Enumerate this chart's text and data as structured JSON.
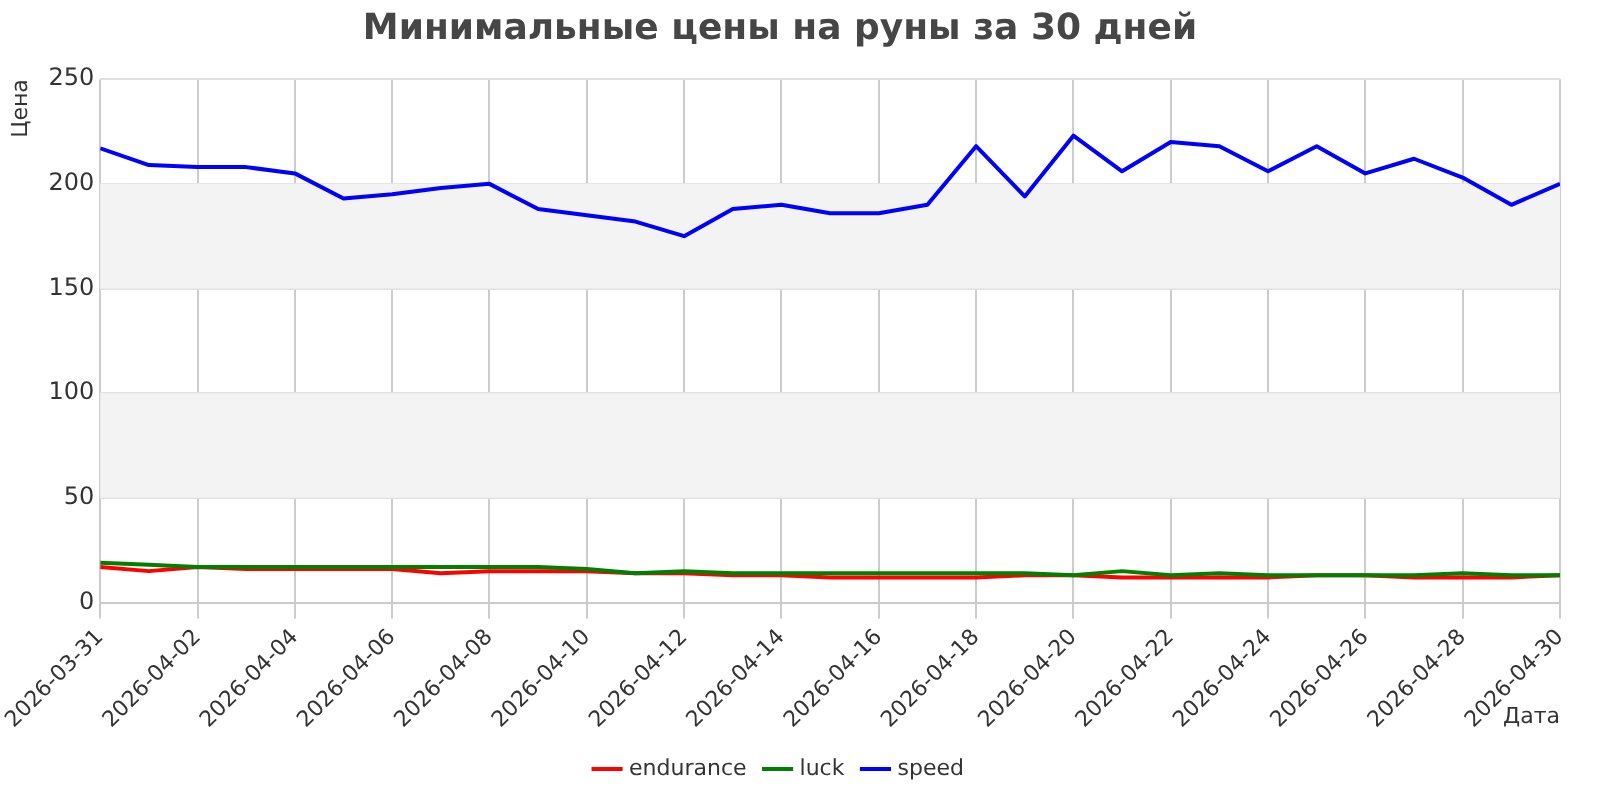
{
  "chart_data": {
    "type": "line",
    "title": "Минимальные цены на руны за 30 дней",
    "xlabel": "Дата",
    "ylabel": "Цена",
    "x": [
      "2026-03-31",
      "2026-04-01",
      "2026-04-02",
      "2026-04-03",
      "2026-04-04",
      "2026-04-05",
      "2026-04-06",
      "2026-04-07",
      "2026-04-08",
      "2026-04-09",
      "2026-04-10",
      "2026-04-11",
      "2026-04-12",
      "2026-04-13",
      "2026-04-14",
      "2026-04-15",
      "2026-04-16",
      "2026-04-17",
      "2026-04-18",
      "2026-04-19",
      "2026-04-20",
      "2026-04-21",
      "2026-04-22",
      "2026-04-23",
      "2026-04-24",
      "2026-04-25",
      "2026-04-26",
      "2026-04-27",
      "2026-04-28",
      "2026-04-29",
      "2026-04-30"
    ],
    "series": [
      {
        "name": "endurance",
        "color": "#ff0000",
        "values": [
          17,
          15,
          17,
          16,
          16,
          16,
          16,
          14,
          15,
          15,
          15,
          14,
          14,
          13,
          13,
          12,
          12,
          12,
          12,
          13,
          13,
          12,
          12,
          12,
          12,
          13,
          13,
          12,
          12,
          12,
          13
        ]
      },
      {
        "name": "luck",
        "color": "#008000",
        "values": [
          19,
          18,
          17,
          17,
          17,
          17,
          17,
          17,
          17,
          17,
          16,
          14,
          15,
          14,
          14,
          14,
          14,
          14,
          14,
          14,
          13,
          15,
          13,
          14,
          13,
          13,
          13,
          13,
          14,
          13,
          13
        ]
      },
      {
        "name": "speed",
        "color": "#0000ff",
        "values": [
          217,
          209,
          208,
          208,
          205,
          193,
          195,
          198,
          200,
          188,
          185,
          182,
          175,
          188,
          190,
          186,
          186,
          190,
          218,
          194,
          223,
          206,
          220,
          218,
          206,
          218,
          205,
          212,
          203,
          190,
          200
        ]
      }
    ],
    "xlim": [
      "2026-03-31",
      "2026-04-30"
    ],
    "xticks": [
      "2026-03-31",
      "2026-04-02",
      "2026-04-04",
      "2026-04-06",
      "2026-04-08",
      "2026-04-10",
      "2026-04-12",
      "2026-04-14",
      "2026-04-16",
      "2026-04-18",
      "2026-04-20",
      "2026-04-22",
      "2026-04-24",
      "2026-04-26",
      "2026-04-28",
      "2026-04-30"
    ],
    "ylim": [
      0,
      250
    ],
    "yticks": [
      0,
      50,
      100,
      150,
      200,
      250
    ],
    "grid": true,
    "legend": "bottom",
    "marker": "none",
    "line_style": "solid"
  }
}
